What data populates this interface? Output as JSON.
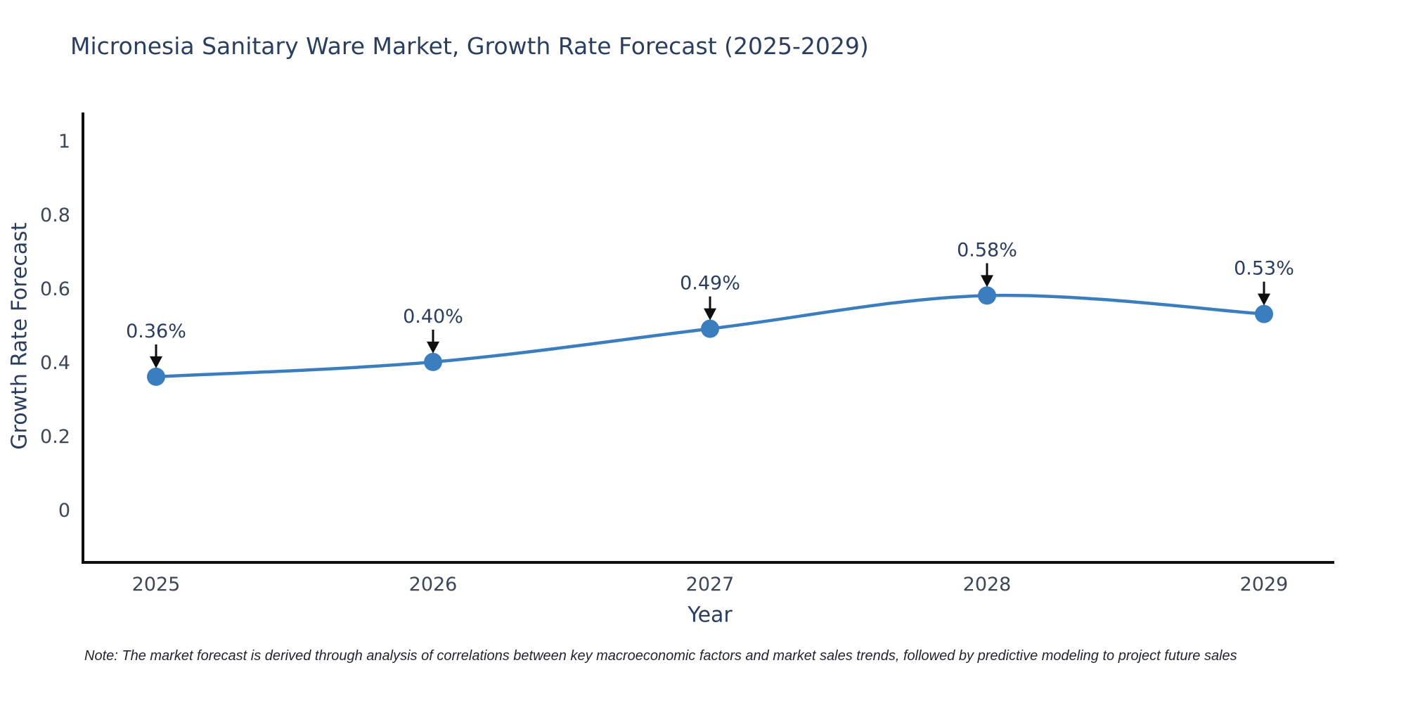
{
  "note": "Note: The market forecast is derived through analysis of correlations between key macroeconomic factors and market sales trends, followed by predictive modeling to project future sales",
  "colors": {
    "line": "#3a7ebf",
    "marker": "#3a7ebf",
    "text": "#2a3f5f",
    "tick": "#3c4859",
    "axis": "#0e0e0e",
    "arrow": "#0e0e0e"
  },
  "chart_data": {
    "type": "line",
    "title": "Micronesia Sanitary Ware Market, Growth Rate Forecast (2025-2029)",
    "x": [
      2025,
      2026,
      2027,
      2028,
      2029
    ],
    "values": [
      0.36,
      0.4,
      0.49,
      0.58,
      0.53
    ],
    "point_labels": [
      "0.36%",
      "0.40%",
      "0.49%",
      "0.58%",
      "0.53%"
    ],
    "xlabel": "Year",
    "ylabel": "Growth Rate Forecast",
    "yticks": [
      0,
      0.2,
      0.4,
      0.6,
      0.8,
      1
    ],
    "ylim": [
      -0.143,
      1.076
    ],
    "line_shape": "spline",
    "grid": false,
    "legend": "none",
    "annotations": "value labels with downward arrows above each point"
  }
}
